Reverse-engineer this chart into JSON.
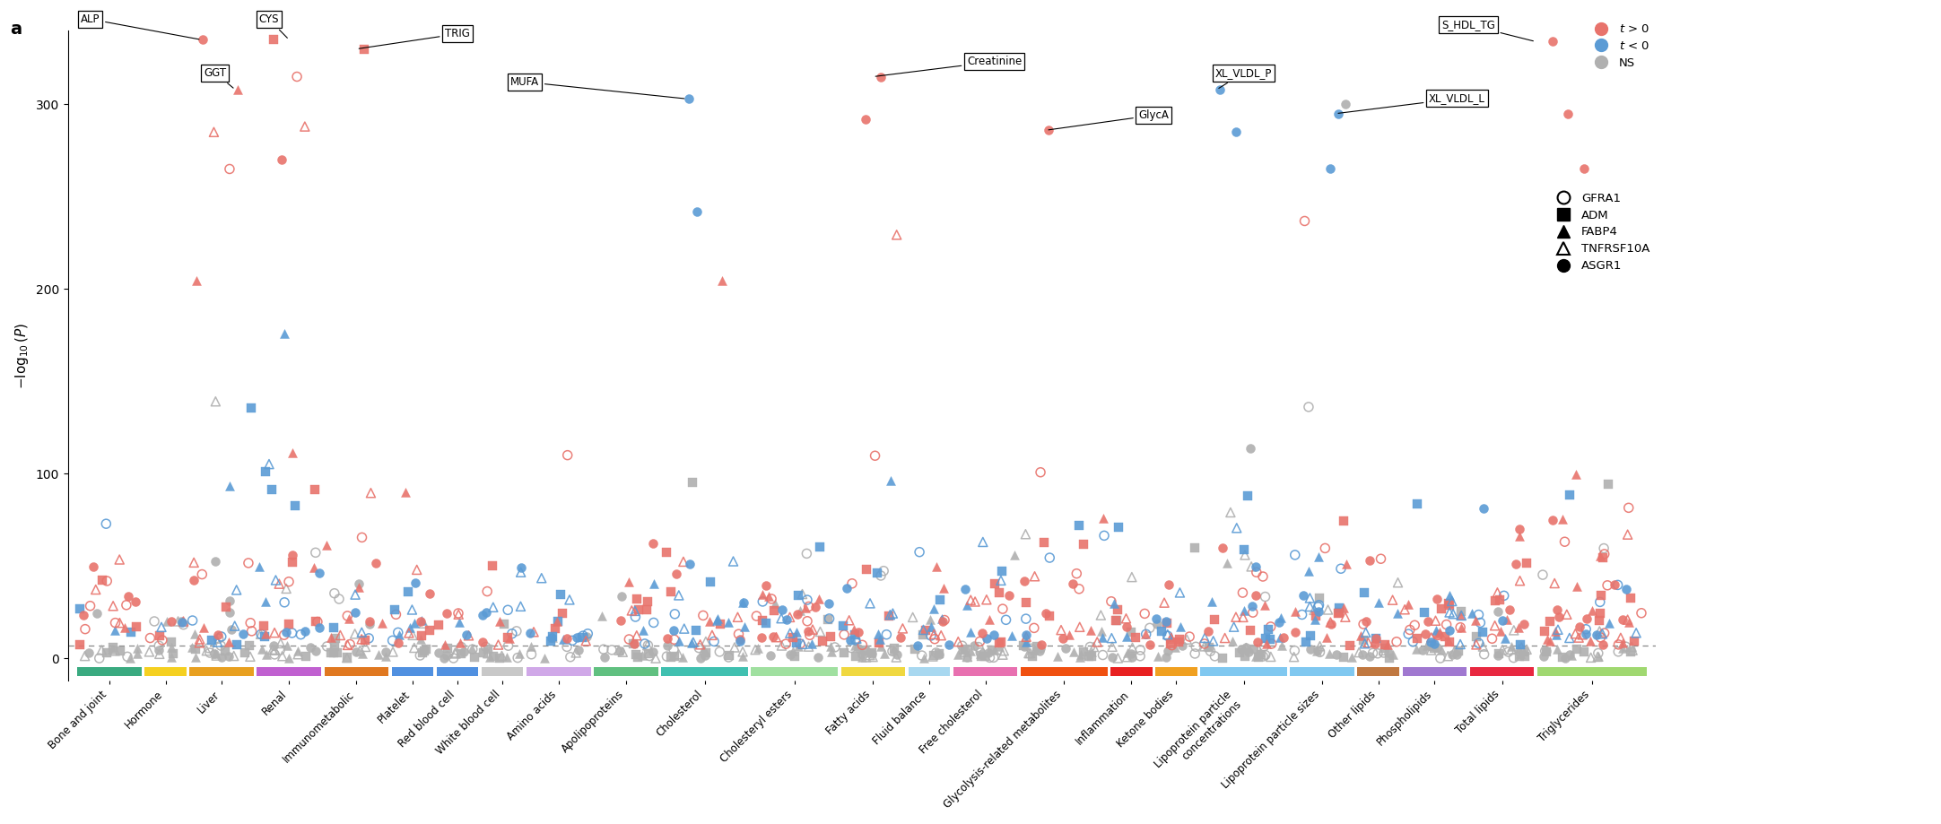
{
  "pos_color": "#e8736c",
  "neg_color": "#5b9bd5",
  "ns_color": "#b0b0b0",
  "ylim": [
    -12,
    340
  ],
  "sig_line": 7,
  "yticks": [
    0,
    100,
    200,
    300
  ],
  "categories": [
    "Bone and joint",
    "Hormone",
    "Liver",
    "Renal",
    "Immunometabolic",
    "Platelet",
    "Red blood cell",
    "White blood cell",
    "Amino acids",
    "Apolipoproteins",
    "Cholesterol",
    "Cholesteryl esters",
    "Fatty acids",
    "Fluid balance",
    "Free cholesterol",
    "Glycolysis-related metabolites",
    "Inflammation",
    "Ketone bodies",
    "Lipoprotein particle\nconcentrations",
    "Lipoprotein particle sizes",
    "Other lipids",
    "Phospholipids",
    "Total lipids",
    "Triglycerides"
  ],
  "cat_colors": [
    "#3aaa80",
    "#f5d020",
    "#e8a020",
    "#c060d0",
    "#e07820",
    "#5090e0",
    "#5090e0",
    "#c8c8c8",
    "#d0a8e8",
    "#60c080",
    "#40c0b0",
    "#a0e0a0",
    "#f0d840",
    "#a8d8f0",
    "#e870b0",
    "#f05010",
    "#e82020",
    "#f0a020",
    "#80c8f0",
    "#80c8f0",
    "#c07840",
    "#a078d0",
    "#e82840",
    "#a0d870"
  ],
  "cat_widths_rel": [
    3,
    2,
    3,
    3,
    3,
    2,
    2,
    2,
    3,
    3,
    4,
    4,
    3,
    2,
    3,
    4,
    2,
    2,
    4,
    3,
    2,
    3,
    3,
    5
  ],
  "annotation_labels": [
    "ALP",
    "GGT",
    "CYS",
    "TRIG",
    "MUFA",
    "Creatinine",
    "GlycA",
    "XL_VLDL_P",
    "XL_VLDL_L",
    "S_HDL_TG"
  ],
  "annotation_cat_idx": [
    2,
    2,
    3,
    4,
    10,
    12,
    15,
    18,
    19,
    23
  ],
  "annotation_point_y": [
    335,
    308,
    335,
    330,
    303,
    315,
    286,
    308,
    295,
    334
  ],
  "annotation_point_dx": [
    -0.3,
    0.2,
    0.0,
    0.0,
    -0.2,
    0.0,
    -0.2,
    -0.3,
    0.2,
    -0.5
  ],
  "annotation_box_dx": [
    -0.55,
    -0.1,
    -0.1,
    0.5,
    -0.6,
    0.6,
    0.4,
    0.1,
    0.6,
    -0.2
  ],
  "annotation_box_dy": [
    8,
    6,
    8,
    5,
    6,
    5,
    5,
    6,
    5,
    6
  ]
}
